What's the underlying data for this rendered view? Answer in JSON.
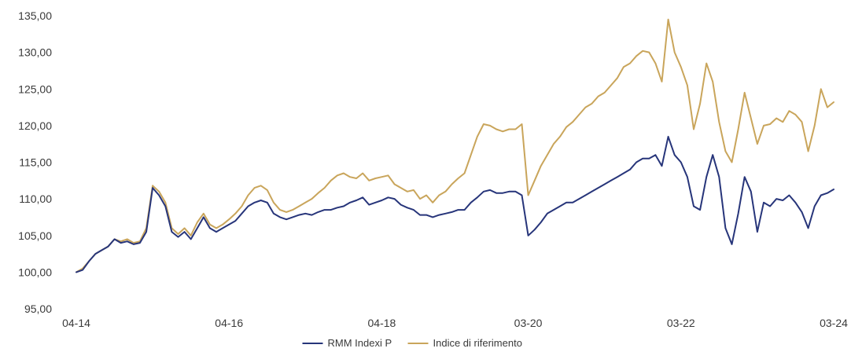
{
  "chart_data": {
    "type": "line",
    "title": "",
    "xlabel": "",
    "ylabel": "",
    "ylim": [
      95,
      135
    ],
    "yticks": [
      95,
      100,
      105,
      110,
      115,
      120,
      125,
      130,
      135
    ],
    "ytick_labels": [
      "95,00",
      "100,00",
      "105,00",
      "110,00",
      "115,00",
      "120,00",
      "125,00",
      "130,00",
      "135,00"
    ],
    "x_range": [
      "2014-04",
      "2024-03"
    ],
    "xticks": [
      "2014-04",
      "2016-04",
      "2018-04",
      "2020-03",
      "2022-03",
      "2024-03"
    ],
    "xtick_labels": [
      "04-14",
      "04-16",
      "04-18",
      "03-20",
      "03-22",
      "03-24"
    ],
    "grid": false,
    "legend_position": "bottom-center",
    "series": [
      {
        "name": "RMM Indexi P",
        "color": "#27357a",
        "points": [
          [
            "2014-04",
            100.0
          ],
          [
            "2014-05",
            100.3
          ],
          [
            "2014-06",
            101.5
          ],
          [
            "2014-07",
            102.5
          ],
          [
            "2014-08",
            103.0
          ],
          [
            "2014-09",
            103.5
          ],
          [
            "2014-10",
            104.5
          ],
          [
            "2014-11",
            104.0
          ],
          [
            "2014-12",
            104.2
          ],
          [
            "2015-01",
            103.8
          ],
          [
            "2015-02",
            104.0
          ],
          [
            "2015-03",
            105.5
          ],
          [
            "2015-04",
            111.5
          ],
          [
            "2015-05",
            110.5
          ],
          [
            "2015-06",
            109.0
          ],
          [
            "2015-07",
            105.5
          ],
          [
            "2015-08",
            104.8
          ],
          [
            "2015-09",
            105.5
          ],
          [
            "2015-10",
            104.5
          ],
          [
            "2015-11",
            106.0
          ],
          [
            "2015-12",
            107.5
          ],
          [
            "2016-01",
            106.0
          ],
          [
            "2016-02",
            105.5
          ],
          [
            "2016-03",
            106.0
          ],
          [
            "2016-04",
            106.5
          ],
          [
            "2016-05",
            107.0
          ],
          [
            "2016-06",
            108.0
          ],
          [
            "2016-07",
            109.0
          ],
          [
            "2016-08",
            109.5
          ],
          [
            "2016-09",
            109.8
          ],
          [
            "2016-10",
            109.5
          ],
          [
            "2016-11",
            108.0
          ],
          [
            "2016-12",
            107.5
          ],
          [
            "2017-01",
            107.2
          ],
          [
            "2017-02",
            107.5
          ],
          [
            "2017-03",
            107.8
          ],
          [
            "2017-04",
            108.0
          ],
          [
            "2017-05",
            107.8
          ],
          [
            "2017-06",
            108.2
          ],
          [
            "2017-07",
            108.5
          ],
          [
            "2017-08",
            108.5
          ],
          [
            "2017-09",
            108.8
          ],
          [
            "2017-10",
            109.0
          ],
          [
            "2017-11",
            109.5
          ],
          [
            "2017-12",
            109.8
          ],
          [
            "2018-01",
            110.2
          ],
          [
            "2018-02",
            109.2
          ],
          [
            "2018-03",
            109.5
          ],
          [
            "2018-04",
            109.8
          ],
          [
            "2018-05",
            110.2
          ],
          [
            "2018-06",
            110.0
          ],
          [
            "2018-07",
            109.2
          ],
          [
            "2018-08",
            108.8
          ],
          [
            "2018-09",
            108.5
          ],
          [
            "2018-10",
            107.8
          ],
          [
            "2018-11",
            107.8
          ],
          [
            "2018-12",
            107.5
          ],
          [
            "2019-01",
            107.8
          ],
          [
            "2019-02",
            108.0
          ],
          [
            "2019-03",
            108.2
          ],
          [
            "2019-04",
            108.5
          ],
          [
            "2019-05",
            108.5
          ],
          [
            "2019-06",
            109.5
          ],
          [
            "2019-07",
            110.2
          ],
          [
            "2019-08",
            111.0
          ],
          [
            "2019-09",
            111.2
          ],
          [
            "2019-10",
            110.8
          ],
          [
            "2019-11",
            110.8
          ],
          [
            "2019-12",
            111.0
          ],
          [
            "2020-01",
            111.0
          ],
          [
            "2020-02",
            110.5
          ],
          [
            "2020-03",
            105.0
          ],
          [
            "2020-04",
            105.8
          ],
          [
            "2020-05",
            106.8
          ],
          [
            "2020-06",
            108.0
          ],
          [
            "2020-07",
            108.5
          ],
          [
            "2020-08",
            109.0
          ],
          [
            "2020-09",
            109.5
          ],
          [
            "2020-10",
            109.5
          ],
          [
            "2020-11",
            110.0
          ],
          [
            "2020-12",
            110.5
          ],
          [
            "2021-01",
            111.0
          ],
          [
            "2021-02",
            111.5
          ],
          [
            "2021-03",
            112.0
          ],
          [
            "2021-04",
            112.5
          ],
          [
            "2021-05",
            113.0
          ],
          [
            "2021-06",
            113.5
          ],
          [
            "2021-07",
            114.0
          ],
          [
            "2021-08",
            115.0
          ],
          [
            "2021-09",
            115.5
          ],
          [
            "2021-10",
            115.5
          ],
          [
            "2021-11",
            116.0
          ],
          [
            "2021-12",
            114.5
          ],
          [
            "2022-01",
            118.5
          ],
          [
            "2022-02",
            116.0
          ],
          [
            "2022-03",
            115.0
          ],
          [
            "2022-04",
            113.0
          ],
          [
            "2022-05",
            109.0
          ],
          [
            "2022-06",
            108.5
          ],
          [
            "2022-07",
            113.0
          ],
          [
            "2022-08",
            116.0
          ],
          [
            "2022-09",
            113.0
          ],
          [
            "2022-10",
            106.0
          ],
          [
            "2022-11",
            103.8
          ],
          [
            "2022-12",
            108.0
          ],
          [
            "2023-01",
            113.0
          ],
          [
            "2023-02",
            111.0
          ],
          [
            "2023-03",
            105.5
          ],
          [
            "2023-04",
            109.5
          ],
          [
            "2023-05",
            109.0
          ],
          [
            "2023-06",
            110.0
          ],
          [
            "2023-07",
            109.8
          ],
          [
            "2023-08",
            110.5
          ],
          [
            "2023-09",
            109.5
          ],
          [
            "2023-10",
            108.2
          ],
          [
            "2023-11",
            106.0
          ],
          [
            "2023-12",
            109.0
          ],
          [
            "2024-01",
            110.5
          ],
          [
            "2024-02",
            110.8
          ],
          [
            "2024-03",
            111.3
          ]
        ]
      },
      {
        "name": "Indice di riferimento",
        "color": "#c9a55b",
        "points": [
          [
            "2014-04",
            100.0
          ],
          [
            "2014-05",
            100.5
          ],
          [
            "2014-06",
            101.5
          ],
          [
            "2014-07",
            102.5
          ],
          [
            "2014-08",
            103.0
          ],
          [
            "2014-09",
            103.5
          ],
          [
            "2014-10",
            104.5
          ],
          [
            "2014-11",
            104.2
          ],
          [
            "2014-12",
            104.5
          ],
          [
            "2015-01",
            104.0
          ],
          [
            "2015-02",
            104.2
          ],
          [
            "2015-03",
            106.0
          ],
          [
            "2015-04",
            111.8
          ],
          [
            "2015-05",
            111.0
          ],
          [
            "2015-06",
            109.5
          ],
          [
            "2015-07",
            106.0
          ],
          [
            "2015-08",
            105.2
          ],
          [
            "2015-09",
            106.0
          ],
          [
            "2015-10",
            105.0
          ],
          [
            "2015-11",
            106.8
          ],
          [
            "2015-12",
            108.0
          ],
          [
            "2016-01",
            106.5
          ],
          [
            "2016-02",
            106.0
          ],
          [
            "2016-03",
            106.5
          ],
          [
            "2016-04",
            107.2
          ],
          [
            "2016-05",
            108.0
          ],
          [
            "2016-06",
            109.0
          ],
          [
            "2016-07",
            110.5
          ],
          [
            "2016-08",
            111.5
          ],
          [
            "2016-09",
            111.8
          ],
          [
            "2016-10",
            111.2
          ],
          [
            "2016-11",
            109.5
          ],
          [
            "2016-12",
            108.5
          ],
          [
            "2017-01",
            108.2
          ],
          [
            "2017-02",
            108.5
          ],
          [
            "2017-03",
            109.0
          ],
          [
            "2017-04",
            109.5
          ],
          [
            "2017-05",
            110.0
          ],
          [
            "2017-06",
            110.8
          ],
          [
            "2017-07",
            111.5
          ],
          [
            "2017-08",
            112.5
          ],
          [
            "2017-09",
            113.2
          ],
          [
            "2017-10",
            113.5
          ],
          [
            "2017-11",
            113.0
          ],
          [
            "2017-12",
            112.8
          ],
          [
            "2018-01",
            113.5
          ],
          [
            "2018-02",
            112.5
          ],
          [
            "2018-03",
            112.8
          ],
          [
            "2018-04",
            113.0
          ],
          [
            "2018-05",
            113.2
          ],
          [
            "2018-06",
            112.0
          ],
          [
            "2018-07",
            111.5
          ],
          [
            "2018-08",
            111.0
          ],
          [
            "2018-09",
            111.2
          ],
          [
            "2018-10",
            110.0
          ],
          [
            "2018-11",
            110.5
          ],
          [
            "2018-12",
            109.5
          ],
          [
            "2019-01",
            110.5
          ],
          [
            "2019-02",
            111.0
          ],
          [
            "2019-03",
            112.0
          ],
          [
            "2019-04",
            112.8
          ],
          [
            "2019-05",
            113.5
          ],
          [
            "2019-06",
            116.0
          ],
          [
            "2019-07",
            118.5
          ],
          [
            "2019-08",
            120.2
          ],
          [
            "2019-09",
            120.0
          ],
          [
            "2019-10",
            119.5
          ],
          [
            "2019-11",
            119.2
          ],
          [
            "2019-12",
            119.5
          ],
          [
            "2020-01",
            119.5
          ],
          [
            "2020-02",
            120.2
          ],
          [
            "2020-03",
            110.5
          ],
          [
            "2020-04",
            112.5
          ],
          [
            "2020-05",
            114.5
          ],
          [
            "2020-06",
            116.0
          ],
          [
            "2020-07",
            117.5
          ],
          [
            "2020-08",
            118.5
          ],
          [
            "2020-09",
            119.8
          ],
          [
            "2020-10",
            120.5
          ],
          [
            "2020-11",
            121.5
          ],
          [
            "2020-12",
            122.5
          ],
          [
            "2021-01",
            123.0
          ],
          [
            "2021-02",
            124.0
          ],
          [
            "2021-03",
            124.5
          ],
          [
            "2021-04",
            125.5
          ],
          [
            "2021-05",
            126.5
          ],
          [
            "2021-06",
            128.0
          ],
          [
            "2021-07",
            128.5
          ],
          [
            "2021-08",
            129.5
          ],
          [
            "2021-09",
            130.2
          ],
          [
            "2021-10",
            130.0
          ],
          [
            "2021-11",
            128.5
          ],
          [
            "2021-12",
            126.0
          ],
          [
            "2022-01",
            134.5
          ],
          [
            "2022-02",
            130.0
          ],
          [
            "2022-03",
            128.0
          ],
          [
            "2022-04",
            125.5
          ],
          [
            "2022-05",
            119.5
          ],
          [
            "2022-06",
            123.0
          ],
          [
            "2022-07",
            128.5
          ],
          [
            "2022-08",
            126.0
          ],
          [
            "2022-09",
            120.5
          ],
          [
            "2022-10",
            116.5
          ],
          [
            "2022-11",
            115.0
          ],
          [
            "2022-12",
            119.5
          ],
          [
            "2023-01",
            124.5
          ],
          [
            "2023-02",
            121.0
          ],
          [
            "2023-03",
            117.5
          ],
          [
            "2023-04",
            120.0
          ],
          [
            "2023-05",
            120.2
          ],
          [
            "2023-06",
            121.0
          ],
          [
            "2023-07",
            120.5
          ],
          [
            "2023-08",
            122.0
          ],
          [
            "2023-09",
            121.5
          ],
          [
            "2023-10",
            120.5
          ],
          [
            "2023-11",
            116.5
          ],
          [
            "2023-12",
            120.0
          ],
          [
            "2024-01",
            125.0
          ],
          [
            "2024-02",
            122.5
          ],
          [
            "2024-03",
            123.2
          ]
        ]
      }
    ]
  }
}
